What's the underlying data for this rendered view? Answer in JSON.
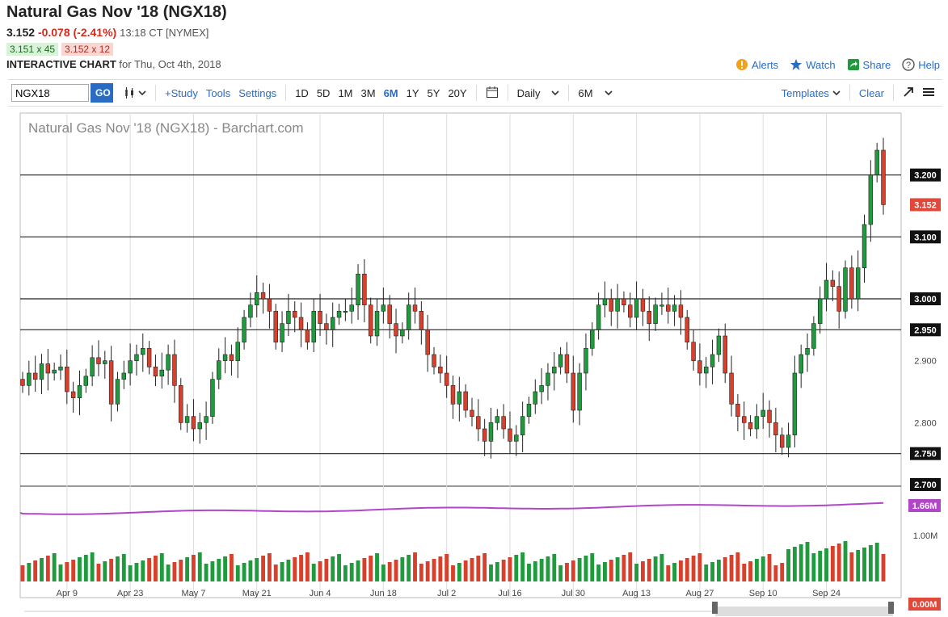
{
  "header": {
    "title": "Natural Gas Nov '18 (NGX18)",
    "last": "3.152",
    "change": "-0.078 (-2.41%)",
    "time": "13:18 CT [NYMEX]",
    "bid": "3.151 x 45",
    "ask": "3.152 x 12",
    "interactive_label": "INTERACTIVE CHART",
    "for_date": "for Thu, Oct 4th, 2018"
  },
  "actions": {
    "alerts": "Alerts",
    "watch": "Watch",
    "share": "Share",
    "help": "Help"
  },
  "toolbar": {
    "symbol_value": "NGX18",
    "go": "GO",
    "study": "+Study",
    "tools": "Tools",
    "settings": "Settings",
    "periods": [
      "1D",
      "5D",
      "1M",
      "3M",
      "6M",
      "1Y",
      "5Y",
      "20Y"
    ],
    "active_period": "6M",
    "interval": "Daily",
    "range": "6M",
    "templates": "Templates",
    "clear": "Clear"
  },
  "colors": {
    "up": "#1f9a3c",
    "down": "#d9402b",
    "volume_ma": "#b245c8",
    "price_tag": "#e0483a",
    "link": "#2a6cc4"
  },
  "chart_data": {
    "type": "candlestick",
    "title": "Natural Gas Nov '18 (NGX18) - Barchart.com",
    "price_axis": {
      "ylim": [
        2.7,
        3.3
      ],
      "ticks": [
        "3.200",
        "3.100",
        "3.000",
        "2.950",
        "2.900",
        "2.800",
        "2.750",
        "2.700"
      ]
    },
    "horizontal_lines": [
      3.2,
      3.1,
      3.0,
      2.95,
      2.75
    ],
    "last_price_label": "3.152",
    "x_labels": [
      "Apr 9",
      "Apr 23",
      "May 7",
      "May 21",
      "Jun 4",
      "Jun 18",
      "Jul 2",
      "Jul 16",
      "Jul 30",
      "Aug 13",
      "Aug 27",
      "Sep 10",
      "Sep 24"
    ],
    "closes": [
      2.86,
      2.88,
      2.87,
      2.895,
      2.88,
      2.885,
      2.89,
      2.85,
      2.84,
      2.86,
      2.875,
      2.905,
      2.895,
      2.9,
      2.83,
      2.87,
      2.88,
      2.9,
      2.91,
      2.92,
      2.89,
      2.875,
      2.885,
      2.91,
      2.86,
      2.8,
      2.81,
      2.79,
      2.8,
      2.81,
      2.87,
      2.9,
      2.91,
      2.9,
      2.93,
      2.97,
      2.99,
      3.01,
      3.0,
      2.98,
      2.93,
      2.96,
      2.98,
      2.97,
      2.95,
      2.93,
      2.98,
      2.96,
      2.95,
      2.97,
      2.98,
      2.98,
      2.99,
      3.04,
      2.99,
      2.94,
      2.98,
      2.99,
      2.96,
      2.94,
      2.95,
      2.99,
      2.98,
      2.95,
      2.91,
      2.89,
      2.88,
      2.86,
      2.83,
      2.85,
      2.82,
      2.81,
      2.79,
      2.77,
      2.8,
      2.81,
      2.79,
      2.77,
      2.78,
      2.81,
      2.83,
      2.85,
      2.86,
      2.88,
      2.89,
      2.91,
      2.88,
      2.82,
      2.88,
      2.92,
      2.95,
      2.99,
      3.0,
      2.98,
      3.0,
      2.99,
      2.97,
      3.0,
      2.98,
      2.96,
      2.99,
      2.99,
      2.98,
      2.99,
      2.97,
      2.93,
      2.9,
      2.88,
      2.89,
      2.91,
      2.94,
      2.88,
      2.83,
      2.81,
      2.8,
      2.79,
      2.81,
      2.82,
      2.8,
      2.78,
      2.76,
      2.78,
      2.88,
      2.91,
      2.92,
      2.96,
      3.0,
      3.03,
      3.02,
      2.98,
      3.05,
      3.0,
      3.05,
      3.12,
      3.2,
      3.24,
      3.152
    ],
    "volume_ma_label": "1.66M",
    "volume_axis": [
      "1.00M",
      "0.00M"
    ]
  }
}
